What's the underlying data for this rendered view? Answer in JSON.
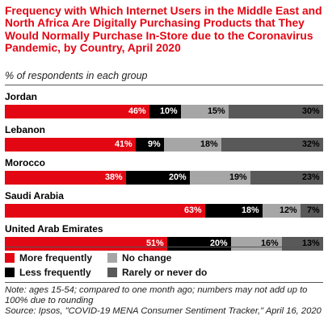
{
  "title": "Frequency with Which Internet Users in the Middle East and North Africa Are Digitally Purchasing Products that They Would Normally Purchase In-Store due to the Coronavirus Pandemic, by Country, April 2020",
  "subtitle": "% of respondents in each group",
  "note": "Note: ages 15-54; compared to one month ago; numbers may not add up to 100% due to rounding",
  "source": "Source: Ipsos, \"COVID-19 MENA Consumer Sentiment Tracker,\" April 16, 2020",
  "colors": {
    "more_frequently": "#e30613",
    "less_frequently": "#000000",
    "no_change": "#a6a6a6",
    "rarely_or_never": "#595959"
  },
  "chart_data": {
    "type": "bar",
    "orientation": "horizontal",
    "stacked": true,
    "categories": [
      "Jordan",
      "Lebanon",
      "Morocco",
      "Saudi Arabia",
      "United Arab Emirates"
    ],
    "series": [
      {
        "name": "More frequently",
        "values": [
          46,
          41,
          38,
          63,
          51
        ]
      },
      {
        "name": "Less frequently",
        "values": [
          10,
          9,
          20,
          18,
          20
        ]
      },
      {
        "name": "No change",
        "values": [
          15,
          18,
          19,
          12,
          16
        ]
      },
      {
        "name": "Rarely or never do",
        "values": [
          30,
          32,
          23,
          7,
          13
        ]
      }
    ],
    "value_labels": [
      [
        "46%",
        "10%",
        "15%",
        "30%"
      ],
      [
        "41%",
        "9%",
        "18%",
        "32%"
      ],
      [
        "38%",
        "20%",
        "19%",
        "23%"
      ],
      [
        "63%",
        "18%",
        "12%",
        "7%"
      ],
      [
        "51%",
        "20%",
        "16%",
        "13%"
      ]
    ],
    "legend": [
      "More frequently",
      "No change",
      "Less frequently",
      "Rarely or never do"
    ],
    "legend_position": "bottom",
    "grid": false
  }
}
